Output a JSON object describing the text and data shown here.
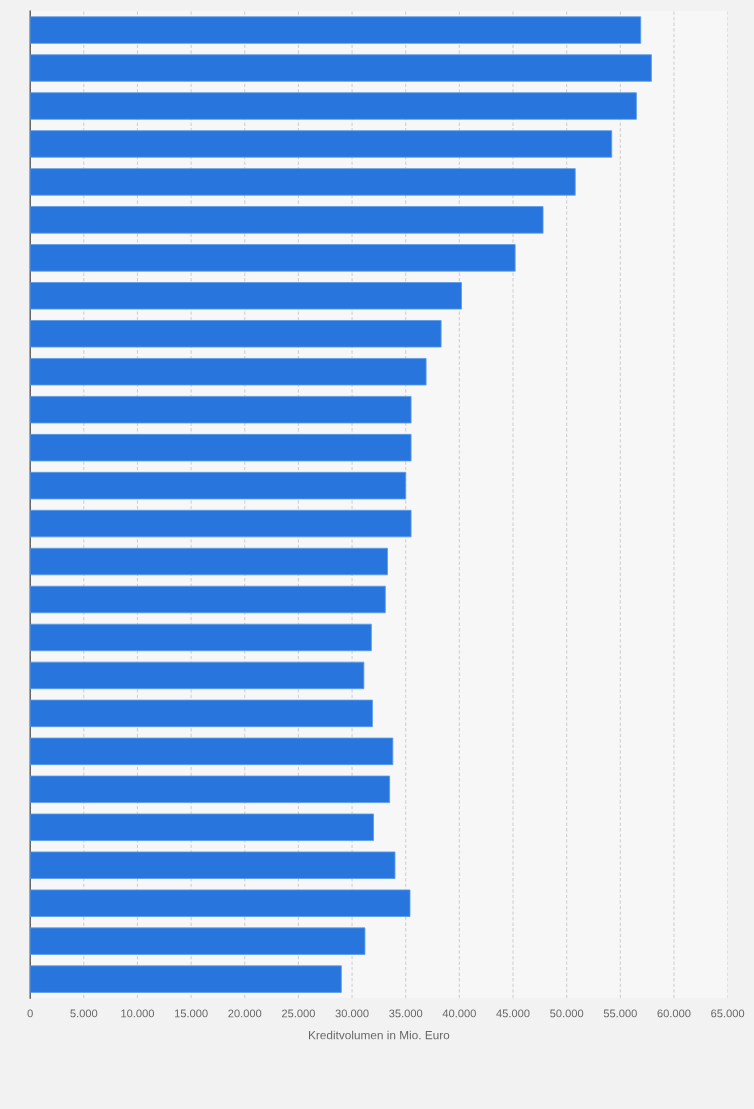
{
  "chart_data": {
    "type": "bar",
    "orientation": "horizontal",
    "xlabel": "Kreditvolumen in Mio. Euro",
    "categories": [
      null,
      null,
      null,
      null,
      null,
      null,
      null,
      null,
      null,
      null,
      null,
      null,
      null,
      null,
      null,
      null,
      null,
      null,
      null,
      null,
      null,
      null,
      null,
      null,
      null,
      null
    ],
    "values": [
      56900,
      57900,
      56500,
      54200,
      50800,
      47800,
      45200,
      40200,
      38300,
      36900,
      35500,
      35500,
      35000,
      35500,
      33300,
      33100,
      31800,
      31100,
      31900,
      33800,
      33500,
      32000,
      34000,
      35400,
      31200,
      29000
    ],
    "color": "#2876dd",
    "xlim": [
      0,
      65000
    ],
    "xticks": [
      0,
      {
        "value": 5000,
        "label": "5.000"
      },
      {
        "value": 10000,
        "label": "10.000"
      },
      {
        "value": 15000,
        "label": "15.000"
      },
      {
        "value": 20000,
        "label": "20.000"
      },
      {
        "value": 25000,
        "label": "25.000"
      },
      {
        "value": 30000,
        "label": "30.000"
      },
      {
        "value": 35000,
        "label": "35.000"
      },
      {
        "value": 40000,
        "label": "40.000"
      },
      {
        "value": 45000,
        "label": "45.000"
      },
      {
        "value": 50000,
        "label": "50.000"
      },
      {
        "value": 55000,
        "label": "55.000"
      },
      {
        "value": 60000,
        "label": "60.000"
      },
      {
        "value": 65000,
        "label": "65.000"
      }
    ],
    "grid": "x",
    "line_style": "dashed"
  }
}
